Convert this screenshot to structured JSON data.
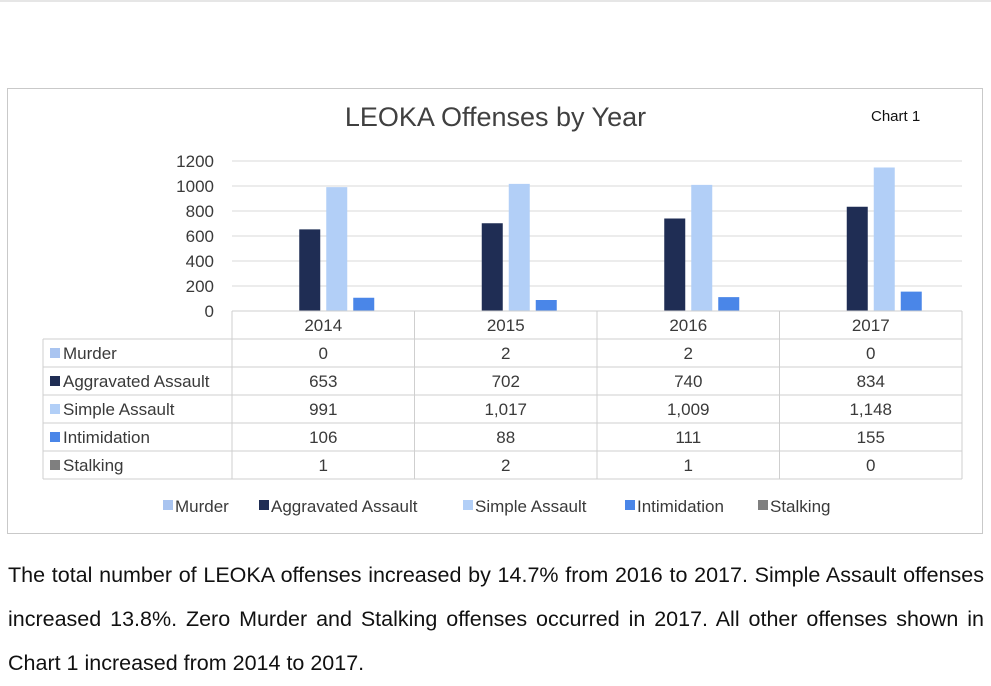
{
  "chart_data": {
    "type": "bar",
    "title": "LEOKA Offenses by Year",
    "chart_label": "Chart 1",
    "categories": [
      "2014",
      "2015",
      "2016",
      "2017"
    ],
    "ylim": [
      0,
      1200
    ],
    "yticks": [
      0,
      200,
      400,
      600,
      800,
      1000,
      1200
    ],
    "grid": true,
    "legend_position": "bottom",
    "series": [
      {
        "name": "Murder",
        "color": "#a9c4f0",
        "values": [
          0,
          2,
          2,
          0
        ],
        "labels": [
          "0",
          "2",
          "2",
          "0"
        ]
      },
      {
        "name": "Aggravated Assault",
        "color": "#1f2d54",
        "values": [
          653,
          702,
          740,
          834
        ],
        "labels": [
          "653",
          "702",
          "740",
          "834"
        ]
      },
      {
        "name": "Simple Assault",
        "color": "#b2cff7",
        "values": [
          991,
          1017,
          1009,
          1148
        ],
        "labels": [
          "991",
          "1,017",
          "1,009",
          "1,148"
        ]
      },
      {
        "name": "Intimidation",
        "color": "#4a86e8",
        "values": [
          106,
          88,
          111,
          155
        ],
        "labels": [
          "106",
          "88",
          "111",
          "155"
        ]
      },
      {
        "name": "Stalking",
        "color": "#7f7f7f",
        "values": [
          1,
          2,
          1,
          0
        ],
        "labels": [
          "1",
          "2",
          "1",
          "0"
        ]
      }
    ]
  },
  "paragraph": "The total number of LEOKA offenses increased by 14.7% from 2016 to 2017. Simple Assault offenses increased 13.8%. Zero Murder and Stalking offenses occurred in 2017. All other offenses shown in Chart 1 increased from 2014 to 2017."
}
